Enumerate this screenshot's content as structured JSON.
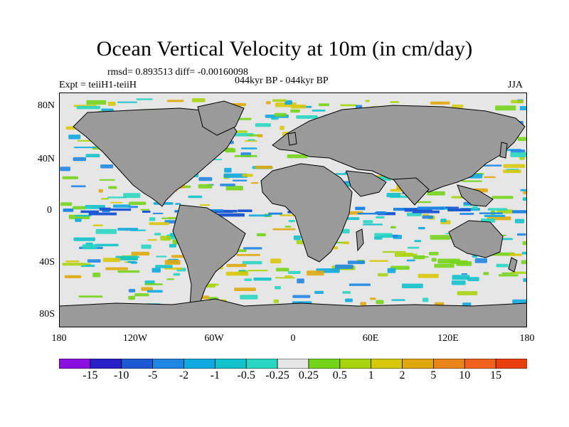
{
  "title": "Ocean Vertical Velocity at 10m (in cm/day)",
  "stats": "rmsd= 0.893513 diff= -0.00160098",
  "left_label": "Expt = teiiH1-teiiH",
  "center_label": "044kyr BP - 044kyr BP",
  "right_label": "JJA",
  "map": {
    "lat_ticks": [
      "80N",
      "40N",
      "0",
      "40S",
      "80S"
    ],
    "lon_ticks": [
      "180",
      "120W",
      "60W",
      "0",
      "60E",
      "120E",
      "180"
    ],
    "land_color": "#9a9a9a",
    "ocean_background": "#e6e6e6"
  },
  "colorbar": {
    "labels": [
      "-15",
      "-10",
      "-5",
      "-2",
      "-1",
      "-0.5",
      "-0.25",
      "0.25",
      "0.5",
      "1",
      "2",
      "5",
      "10",
      "15"
    ],
    "colors": [
      "#8a10e0",
      "#2a20c8",
      "#1e58d2",
      "#1f86e4",
      "#10a8e0",
      "#12c2cc",
      "#28d6c2",
      "#e6e6e6",
      "#74d41a",
      "#a8d40c",
      "#d8c80c",
      "#e0a80c",
      "#e8841a",
      "#f0621e",
      "#e8400c"
    ]
  }
}
